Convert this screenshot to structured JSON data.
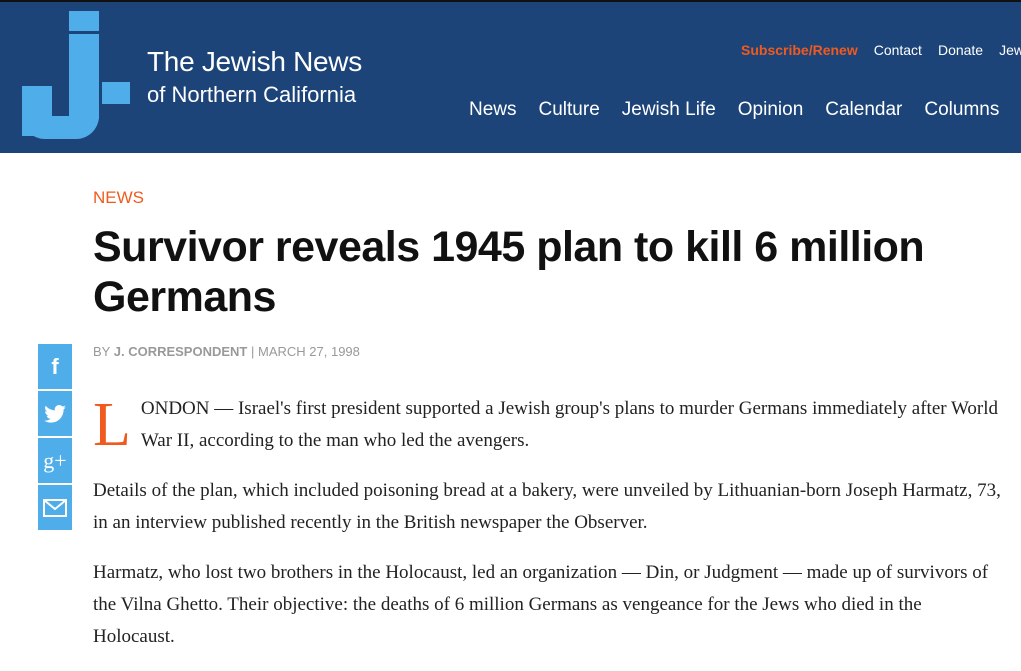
{
  "header": {
    "brand_line1": "The Jewish News",
    "brand_line2": "of Northern California",
    "utility": [
      "Subscribe/Renew",
      "Contact",
      "Donate",
      "Jew"
    ],
    "nav": [
      "News",
      "Culture",
      "Jewish Life",
      "Opinion",
      "Calendar",
      "Columns"
    ]
  },
  "colors": {
    "header_bg": "#1c4479",
    "accent": "#f05a1e",
    "logo": "#4fadea"
  },
  "article": {
    "kicker": "NEWS",
    "title": "Survivor reveals 1945 plan to kill 6 million Germans",
    "by": "BY",
    "author": "J. CORRESPONDENT",
    "sep": "|",
    "date": "MARCH 27, 1998",
    "drop_cap": "L",
    "p1": "ONDON — Israel's first president supported a Jewish group's plans to murder Germans immediately after World War II, according to the man who led the avengers.",
    "p2": "Details of the plan, which included poisoning bread at a bakery, were unveiled by Lithuanian-born Joseph Harmatz, 73, in an interview published recently in the British newspaper the Observer.",
    "p3": "Harmatz, who lost two brothers in the Holocaust, led an organization — Din, or Judgment — made up of survivors of the Vilna Ghetto. Their objective: the deaths of 6 million Germans as vengeance for the Jews who died in the Holocaust."
  },
  "share": {
    "facebook": "f",
    "google": "g+"
  }
}
